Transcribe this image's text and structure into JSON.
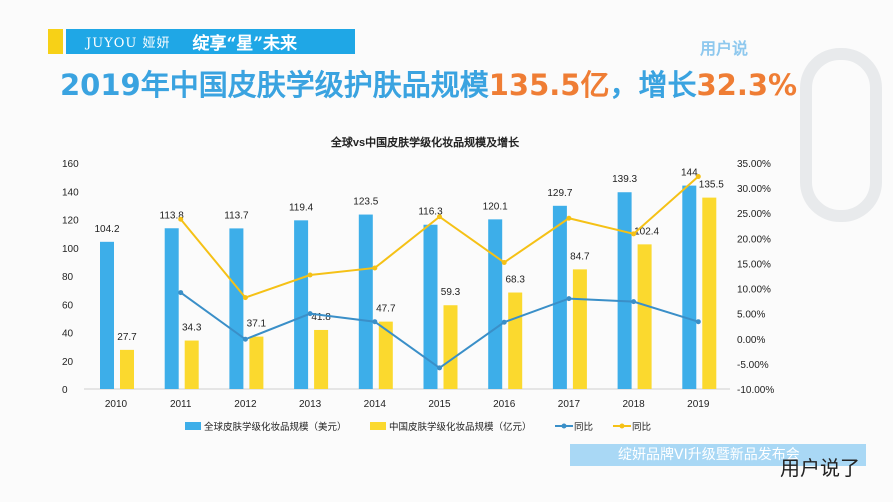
{
  "header": {
    "logo": "JUYOU 娅妍",
    "slogan": "绽享“星”未来",
    "brand": "用户说"
  },
  "title": {
    "part1": "2019年中国皮肤学级护肤品规模",
    "value": "135.5亿",
    "part2": "，增长",
    "growth": "32.3%"
  },
  "footer": {
    "banner": "绽妍品牌VI升级暨新品发布会",
    "watermark": "用户说了"
  },
  "colors": {
    "blue": "#3daee9",
    "yellow": "#fbd92e",
    "blue_line": "#3a8fc8",
    "yellow_line": "#f5c116",
    "title_blue": "#3aa3e0",
    "title_orange": "#ef7d34"
  },
  "chart_data": {
    "type": "bar",
    "title": "全球vs中国皮肤学级化妆品规模及增长",
    "categories": [
      "2010",
      "2011",
      "2012",
      "2013",
      "2014",
      "2015",
      "2016",
      "2017",
      "2018",
      "2019"
    ],
    "ylim": [
      0,
      160
    ],
    "yticks": [
      "0",
      "20",
      "40",
      "60",
      "80",
      "100",
      "120",
      "140",
      "160"
    ],
    "y2lim": [
      -10,
      35
    ],
    "y2ticks": [
      "-10.00%",
      "-5.00%",
      "0.00%",
      "5.00%",
      "10.00%",
      "15.00%",
      "20.00%",
      "25.00%",
      "30.00%",
      "35.00%"
    ],
    "grid": false,
    "legend": "bottom",
    "series": [
      {
        "name": "全球皮肤学级化妆品规模（美元）",
        "type": "bar",
        "axis": "left",
        "values": [
          104.2,
          113.8,
          113.7,
          119.4,
          123.5,
          116.3,
          120.1,
          129.7,
          139.3,
          144
        ]
      },
      {
        "name": "中国皮肤学级化妆品规模（亿元）",
        "type": "bar",
        "axis": "left",
        "values": [
          27.7,
          34.3,
          37.1,
          41.8,
          47.7,
          59.3,
          68.3,
          84.7,
          102.4,
          135.5
        ]
      },
      {
        "name": "同比",
        "type": "line",
        "axis": "right",
        "values": [
          null,
          9.2,
          -0.1,
          5.0,
          3.4,
          -5.8,
          3.3,
          8.0,
          7.4,
          3.4
        ]
      },
      {
        "name": "同比",
        "type": "line",
        "axis": "right",
        "values": [
          null,
          23.8,
          8.2,
          12.7,
          14.1,
          24.3,
          15.2,
          24.0,
          20.9,
          32.3
        ]
      }
    ]
  }
}
